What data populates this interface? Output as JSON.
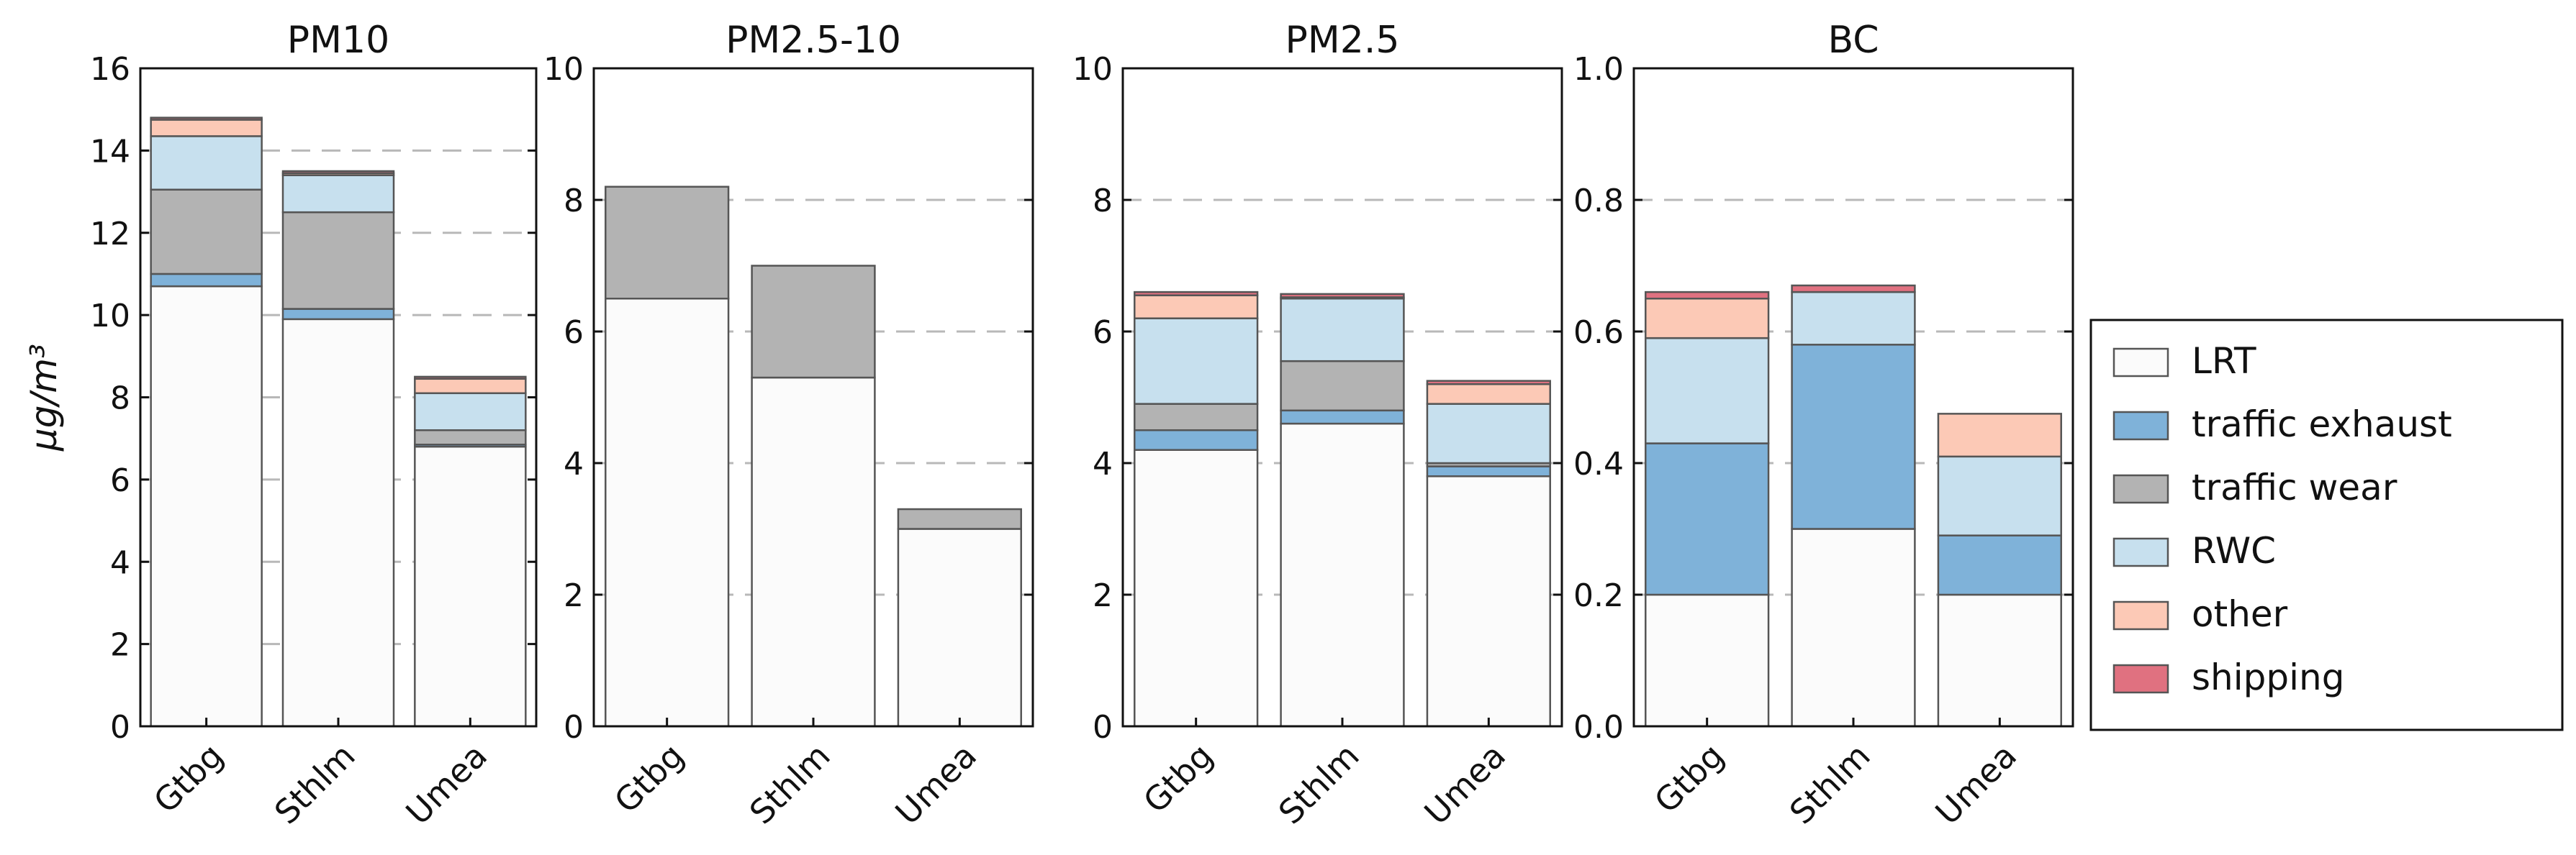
{
  "chart_data": {
    "type": "bar",
    "stacked": true,
    "ylabel": "μg/m³",
    "categories": [
      "Gtbg",
      "Sthlm",
      "Umea"
    ],
    "components": [
      {
        "name": "LRT",
        "color": "#fbfbfb"
      },
      {
        "name": "traffic exhaust",
        "color": "#7fb2d9"
      },
      {
        "name": "traffic wear",
        "color": "#b3b3b3"
      },
      {
        "name": "RWC",
        "color": "#c7e0ee"
      },
      {
        "name": "other",
        "color": "#fcc9b6"
      },
      {
        "name": "shipping",
        "color": "#e07180"
      }
    ],
    "legend": {
      "placement": "right"
    },
    "grid": {
      "y": true,
      "style": "dashed"
    },
    "panels": [
      {
        "title": "PM10",
        "ylim": [
          0,
          16
        ],
        "yticks": [
          "0",
          "2",
          "4",
          "6",
          "8",
          "10",
          "12",
          "14",
          "16"
        ],
        "ytick_values": [
          0,
          2,
          4,
          6,
          8,
          10,
          12,
          14,
          16
        ],
        "series": [
          {
            "name": "LRT",
            "values": [
              10.7,
              9.9,
              6.8
            ]
          },
          {
            "name": "traffic exhaust",
            "values": [
              0.3,
              0.25,
              0.05
            ]
          },
          {
            "name": "traffic wear",
            "values": [
              2.05,
              2.35,
              0.35
            ]
          },
          {
            "name": "RWC",
            "values": [
              1.3,
              0.9,
              0.9
            ]
          },
          {
            "name": "other",
            "values": [
              0.4,
              0.05,
              0.35
            ]
          },
          {
            "name": "shipping",
            "values": [
              0.05,
              0.05,
              0.05
            ]
          }
        ]
      },
      {
        "title": "PM2.5-10",
        "ylim": [
          0,
          10
        ],
        "yticks": [
          "0",
          "2",
          "4",
          "6",
          "8",
          "10"
        ],
        "ytick_values": [
          0,
          2,
          4,
          6,
          8,
          10
        ],
        "series": [
          {
            "name": "LRT",
            "values": [
              6.5,
              5.3,
              3.0
            ]
          },
          {
            "name": "traffic exhaust",
            "values": [
              0,
              0,
              0
            ]
          },
          {
            "name": "traffic wear",
            "values": [
              1.7,
              1.7,
              0.3
            ]
          },
          {
            "name": "RWC",
            "values": [
              0,
              0,
              0
            ]
          },
          {
            "name": "other",
            "values": [
              0,
              0,
              0
            ]
          },
          {
            "name": "shipping",
            "values": [
              0,
              0,
              0
            ]
          }
        ]
      },
      {
        "title": "PM2.5",
        "ylim": [
          0,
          10
        ],
        "yticks": [
          "0",
          "2",
          "4",
          "6",
          "8",
          "10"
        ],
        "ytick_values": [
          0,
          2,
          4,
          6,
          8,
          10
        ],
        "series": [
          {
            "name": "LRT",
            "values": [
              4.2,
              4.6,
              3.8
            ]
          },
          {
            "name": "traffic exhaust",
            "values": [
              0.3,
              0.2,
              0.15
            ]
          },
          {
            "name": "traffic wear",
            "values": [
              0.4,
              0.75,
              0.05
            ]
          },
          {
            "name": "RWC",
            "values": [
              1.3,
              0.95,
              0.9
            ]
          },
          {
            "name": "other",
            "values": [
              0.35,
              0.02,
              0.3
            ]
          },
          {
            "name": "shipping",
            "values": [
              0.05,
              0.05,
              0.05
            ]
          }
        ]
      },
      {
        "title": "BC",
        "ylim": [
          0,
          1.0
        ],
        "yticks": [
          "0.0",
          "0.2",
          "0.4",
          "0.6",
          "0.8",
          "1.0"
        ],
        "ytick_values": [
          0,
          0.2,
          0.4,
          0.6,
          0.8,
          1.0
        ],
        "series": [
          {
            "name": "LRT",
            "values": [
              0.2,
              0.3,
              0.2
            ]
          },
          {
            "name": "traffic exhaust",
            "values": [
              0.23,
              0.28,
              0.09
            ]
          },
          {
            "name": "traffic wear",
            "values": [
              0,
              0,
              0
            ]
          },
          {
            "name": "RWC",
            "values": [
              0.16,
              0.08,
              0.12
            ]
          },
          {
            "name": "other",
            "values": [
              0.06,
              0,
              0.065
            ]
          },
          {
            "name": "shipping",
            "values": [
              0.01,
              0.01,
              0
            ]
          }
        ]
      }
    ]
  }
}
